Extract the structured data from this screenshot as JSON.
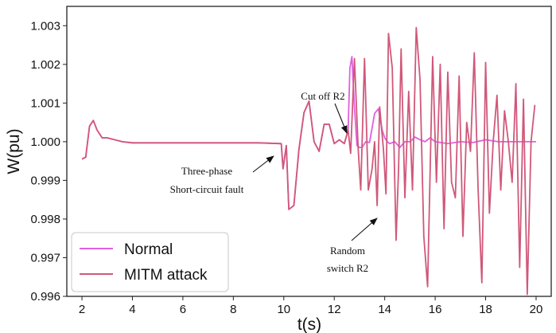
{
  "chart_data": {
    "type": "line",
    "xlabel": "t(s)",
    "ylabel": "W(pu)",
    "xlim": [
      1.4,
      20.6
    ],
    "ylim": [
      0.996,
      1.0035
    ],
    "xticks": [
      "2",
      "4",
      "6",
      "8",
      "10",
      "12",
      "14",
      "16",
      "18",
      "20"
    ],
    "yticks": [
      "0.996",
      "0.997",
      "0.998",
      "0.999",
      "1.000",
      "1.001",
      "1.002",
      "1.003"
    ],
    "legend_position": "bottom-left",
    "grid": false,
    "series": [
      {
        "name": "Normal",
        "color": "#e060e0",
        "x": [
          2.0,
          2.15,
          2.3,
          2.45,
          2.6,
          2.8,
          3.0,
          3.3,
          3.6,
          4.0,
          5.0,
          6.0,
          7.0,
          8.0,
          9.0,
          9.9,
          9.97,
          10.1,
          10.2,
          10.4,
          10.6,
          10.8,
          11.0,
          11.2,
          11.4,
          11.6,
          11.8,
          12.0,
          12.2,
          12.4,
          12.55,
          12.62,
          12.7,
          12.8,
          12.9,
          13.0,
          13.1,
          13.25,
          13.4,
          13.6,
          13.75,
          13.9,
          14.0,
          14.1,
          14.2,
          14.4,
          14.6,
          14.8,
          15.0,
          15.2,
          15.4,
          15.6,
          15.8,
          16.0,
          16.5,
          17.0,
          17.5,
          18.0,
          18.5,
          19.0,
          19.5,
          20.0
        ],
        "y": [
          0.99955,
          0.9996,
          1.0004,
          1.00055,
          1.0003,
          1.0001,
          1.0001,
          1.00005,
          1.0,
          0.99997,
          0.99997,
          0.99997,
          0.99997,
          0.99997,
          0.99997,
          0.99995,
          0.9993,
          0.9999,
          0.99825,
          0.99835,
          0.9998,
          1.00075,
          1.00105,
          1.0,
          0.99975,
          1.00045,
          1.00045,
          0.99995,
          1.00005,
          0.99995,
          1.0003,
          1.0019,
          1.0022,
          1.0009,
          0.9999,
          0.99985,
          0.99985,
          1.0,
          0.99998,
          1.00073,
          1.00085,
          1.0003,
          1.0001,
          1.0,
          0.99995,
          1.0,
          0.99985,
          1.0,
          1.0,
          1.00012,
          1.00005,
          1.0,
          1.0001,
          1.0,
          0.99995,
          1.0,
          0.99998,
          1.00005,
          1.0,
          1.0,
          1.0,
          1.0
        ]
      },
      {
        "name": "MITM attack",
        "color": "#d0587a",
        "x": [
          2.0,
          2.15,
          2.3,
          2.45,
          2.6,
          2.8,
          3.0,
          3.3,
          3.6,
          4.0,
          5.0,
          6.0,
          7.0,
          8.0,
          9.0,
          9.9,
          9.97,
          10.1,
          10.2,
          10.4,
          10.6,
          10.8,
          11.0,
          11.2,
          11.4,
          11.6,
          11.8,
          12.0,
          12.2,
          12.4,
          12.55,
          12.65,
          12.8,
          12.95,
          13.05,
          13.2,
          13.35,
          13.5,
          13.6,
          13.7,
          13.8,
          13.95,
          14.05,
          14.15,
          14.3,
          14.45,
          14.55,
          14.65,
          14.8,
          14.95,
          15.1,
          15.25,
          15.4,
          15.55,
          15.7,
          15.9,
          16.05,
          16.2,
          16.35,
          16.5,
          16.65,
          16.8,
          16.95,
          17.1,
          17.25,
          17.4,
          17.55,
          17.7,
          17.85,
          18.0,
          18.15,
          18.3,
          18.45,
          18.6,
          18.75,
          18.9,
          19.05,
          19.2,
          19.35,
          19.5,
          19.65,
          19.8,
          19.95
        ],
        "y": [
          0.99955,
          0.9996,
          1.0004,
          1.00055,
          1.0003,
          1.0001,
          1.0001,
          1.00005,
          1.0,
          0.99997,
          0.99997,
          0.99997,
          0.99997,
          0.99997,
          0.99997,
          0.99995,
          0.9993,
          0.9999,
          0.99825,
          0.99835,
          0.9998,
          1.00075,
          1.00105,
          1.0,
          0.99975,
          1.00045,
          1.00045,
          0.99995,
          1.00005,
          0.99995,
          1.0003,
          0.9997,
          1.00215,
          0.9998,
          0.99875,
          1.00215,
          0.99875,
          0.9993,
          1.0,
          0.99835,
          1.0009,
          0.9998,
          0.99865,
          1.0028,
          1.0019,
          0.99745,
          0.9993,
          1.0024,
          0.99855,
          1.0013,
          0.99875,
          1.00295,
          1.0016,
          0.99755,
          0.99625,
          1.0022,
          0.99895,
          1.002,
          0.99775,
          1.0018,
          0.99895,
          0.99855,
          1.0017,
          0.99755,
          1.0005,
          0.99975,
          1.0023,
          0.9988,
          0.99635,
          1.00205,
          0.99815,
          1.0,
          1.0012,
          0.99875,
          1.0008,
          1.0,
          0.99895,
          1.0015,
          0.99675,
          1.0011,
          0.99605,
          1.0,
          1.00095
        ]
      }
    ],
    "annotations": [
      {
        "lines": [
          "Three-phase",
          "Short-circuit fault"
        ],
        "target_x": 10.0,
        "target_y": 0.99993
      },
      {
        "lines": [
          "Cut off R2"
        ],
        "target_x": 12.6,
        "target_y": 1.0002
      },
      {
        "lines": [
          "Random",
          "switch R2"
        ],
        "target_x": 14.35,
        "target_y": 0.99835
      }
    ]
  }
}
